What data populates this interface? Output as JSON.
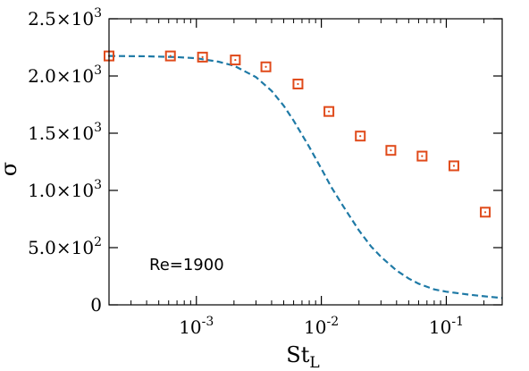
{
  "chart_data": {
    "type": "scatter",
    "xscale": "log",
    "xlim": [
      0.0002,
      0.28
    ],
    "ylim": [
      0,
      2500
    ],
    "x_ticks": [
      {
        "value": 0.001,
        "base": "10",
        "exp": "-3"
      },
      {
        "value": 0.01,
        "base": "10",
        "exp": "-2"
      },
      {
        "value": 0.1,
        "base": "10",
        "exp": "-1"
      }
    ],
    "y_ticks": [
      {
        "value": 0,
        "mant": "0",
        "exp": ""
      },
      {
        "value": 500,
        "mant": "5.0×10",
        "exp": "2"
      },
      {
        "value": 1000,
        "mant": "1.0×10",
        "exp": "3"
      },
      {
        "value": 1500,
        "mant": "1.5×10",
        "exp": "3"
      },
      {
        "value": 2000,
        "mant": "2.0×10",
        "exp": "3"
      },
      {
        "value": 2500,
        "mant": "2.5×10",
        "exp": "3"
      }
    ],
    "xlabel": "St",
    "xlabel_sub": "L",
    "ylabel": "σ",
    "annotation": "Re=1900",
    "grid": false,
    "series": [
      {
        "kind": "markers",
        "marker": "square-dot",
        "color": "#e04a1a",
        "x": [
          0.0002,
          0.00062,
          0.00112,
          0.00205,
          0.0036,
          0.0065,
          0.0115,
          0.0205,
          0.036,
          0.064,
          0.115,
          0.205
        ],
        "y": [
          2175,
          2175,
          2165,
          2140,
          2080,
          1930,
          1690,
          1475,
          1350,
          1300,
          1215,
          810
        ]
      },
      {
        "kind": "line",
        "dash": "dashed",
        "color": "#1f7aa6",
        "x": [
          0.0002,
          0.0004,
          0.0007,
          0.001,
          0.0015,
          0.002,
          0.003,
          0.004,
          0.005,
          0.006,
          0.008,
          0.01,
          0.012,
          0.015,
          0.02,
          0.025,
          0.03,
          0.04,
          0.05,
          0.06,
          0.08,
          0.1,
          0.15,
          0.2,
          0.28
        ],
        "y": [
          2175,
          2172,
          2165,
          2155,
          2125,
          2090,
          1990,
          1870,
          1740,
          1610,
          1380,
          1190,
          1030,
          860,
          650,
          510,
          420,
          300,
          230,
          185,
          135,
          115,
          90,
          75,
          60
        ]
      }
    ]
  }
}
